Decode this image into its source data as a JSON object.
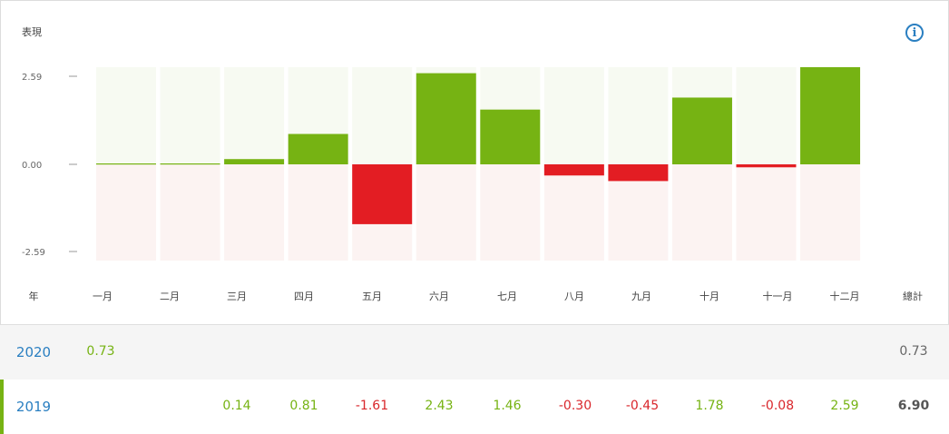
{
  "header": {
    "label": "表現",
    "info_icon": "info-icon",
    "info_glyph": "i"
  },
  "chart_data": {
    "type": "bar",
    "categories": [
      "一月",
      "二月",
      "三月",
      "四月",
      "五月",
      "六月",
      "七月",
      "八月",
      "九月",
      "十月",
      "十一月",
      "十二月"
    ],
    "series": [
      {
        "values": [
          0,
          0,
          0.14,
          0.81,
          -1.61,
          2.43,
          1.46,
          -0.3,
          -0.45,
          1.78,
          -0.08,
          2.59
        ]
      }
    ],
    "yticks": [
      "2.59",
      "0.00",
      "-2.59"
    ],
    "ylim": [
      -2.59,
      2.59
    ],
    "colors": {
      "positive": "#76b313",
      "negative": "#e31d23",
      "positive_bg": "#f7faf2",
      "negative_bg": "#fcf3f2"
    }
  },
  "table": {
    "year_header": "年",
    "total_header": "總計",
    "months": [
      "一月",
      "二月",
      "三月",
      "四月",
      "五月",
      "六月",
      "七月",
      "八月",
      "九月",
      "十月",
      "十一月",
      "十二月"
    ],
    "rows": [
      {
        "year": "2020",
        "values": [
          "0.73",
          "",
          "",
          "",
          "",
          "",
          "",
          "",
          "",
          "",
          "",
          ""
        ],
        "total": "0.73"
      },
      {
        "year": "2019",
        "values": [
          "",
          "",
          "0.14",
          "0.81",
          "-1.61",
          "2.43",
          "1.46",
          "-0.30",
          "-0.45",
          "1.78",
          "-0.08",
          "2.59"
        ],
        "total": "6.90"
      }
    ]
  }
}
